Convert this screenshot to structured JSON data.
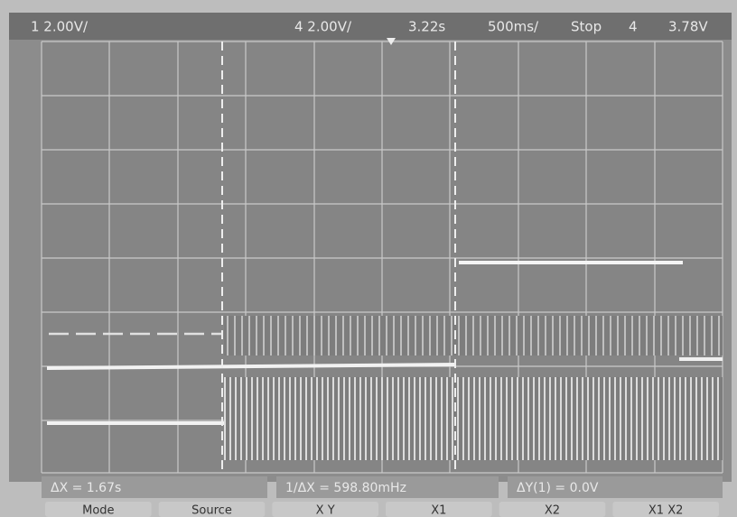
{
  "header": {
    "channel1": "1 2.00V/",
    "channel4": "4 2.00V/",
    "delay": "3.22s",
    "timebase": "500ms/",
    "run_state": "Stop",
    "trigger_source": "4",
    "trigger_level": "3.78V"
  },
  "readouts": {
    "delta_x": "ΔX = 1.67s",
    "inverse_delta_x": "1/ΔX = 598.80mHz",
    "delta_y": "ΔY(1) = 0.0V"
  },
  "softkeys": [
    "Mode",
    "Source",
    "X Y",
    "X1",
    "X2",
    "X1 X2"
  ]
}
